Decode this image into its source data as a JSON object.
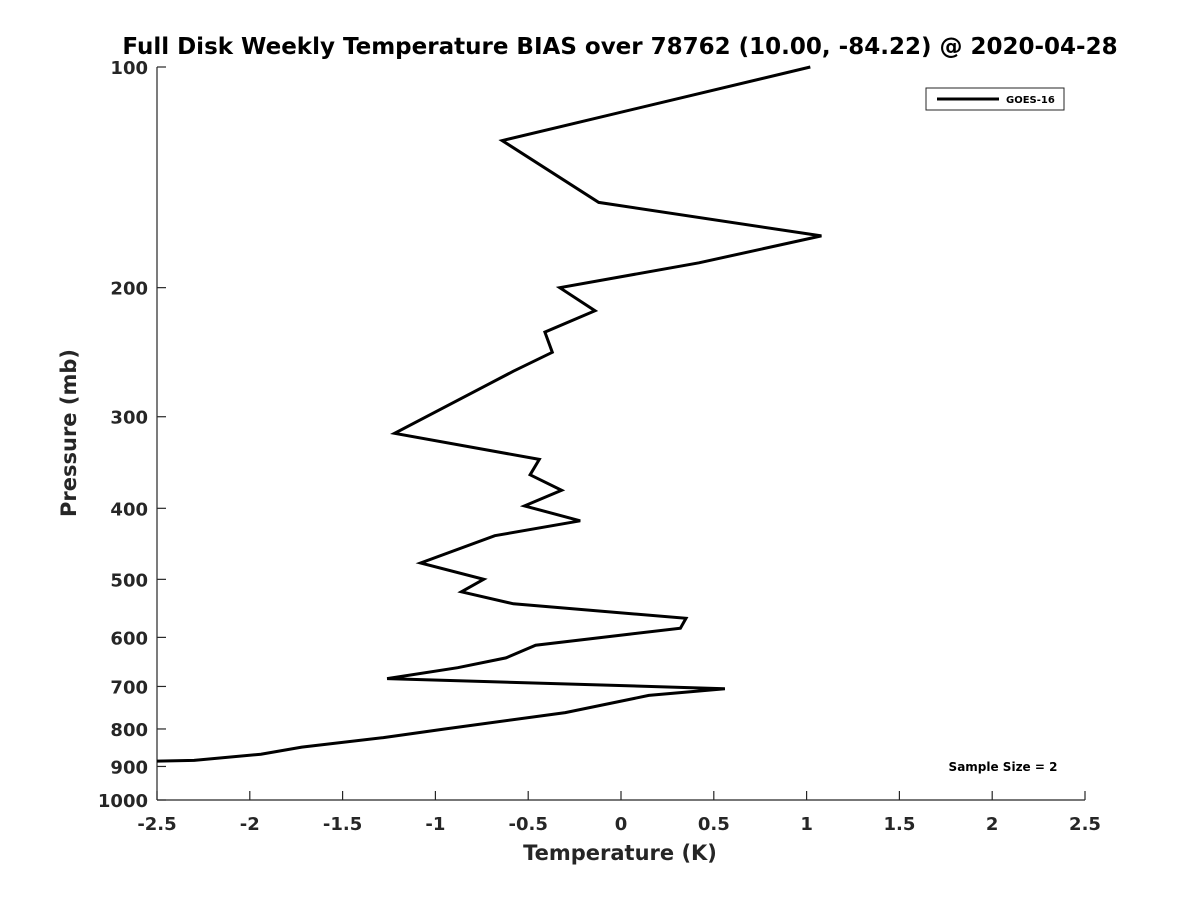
{
  "chart_data": {
    "type": "line",
    "title": "Full Disk Weekly Temperature BIAS over 78762 (10.00, -84.22) @ 2020-04-28",
    "xlabel": "Temperature (K)",
    "ylabel": "Pressure (mb)",
    "xlim": [
      -2.5,
      2.5
    ],
    "ylim": [
      1000,
      100
    ],
    "yscale": "log",
    "y_reversed": true,
    "grid": false,
    "legend_position": "top-right",
    "x_ticks": [
      -2.5,
      -2,
      -1.5,
      -1,
      -0.5,
      0,
      0.5,
      1,
      1.5,
      2,
      2.5
    ],
    "x_tick_labels": [
      "-2.5",
      "-2",
      "-1.5",
      "-1",
      "-0.5",
      "0",
      "0.5",
      "1",
      "1.5",
      "2",
      "2.5"
    ],
    "y_ticks": [
      100,
      200,
      300,
      400,
      500,
      600,
      700,
      800,
      900,
      1000
    ],
    "y_tick_labels": [
      "100",
      "200",
      "300",
      "400",
      "500",
      "600",
      "700",
      "800",
      "900",
      "1000"
    ],
    "series": [
      {
        "name": "GOES-16",
        "color": "#000000",
        "points": [
          {
            "x": 1.02,
            "y": 100
          },
          {
            "x": -0.64,
            "y": 126
          },
          {
            "x": -0.12,
            "y": 153
          },
          {
            "x": 1.08,
            "y": 170
          },
          {
            "x": 0.42,
            "y": 185
          },
          {
            "x": -0.33,
            "y": 200
          },
          {
            "x": -0.14,
            "y": 215
          },
          {
            "x": -0.41,
            "y": 230
          },
          {
            "x": -0.37,
            "y": 245
          },
          {
            "x": -0.58,
            "y": 260
          },
          {
            "x": -1.22,
            "y": 316
          },
          {
            "x": -0.44,
            "y": 343
          },
          {
            "x": -0.49,
            "y": 360
          },
          {
            "x": -0.32,
            "y": 378
          },
          {
            "x": -0.52,
            "y": 397
          },
          {
            "x": -0.22,
            "y": 416
          },
          {
            "x": -0.68,
            "y": 436
          },
          {
            "x": -1.08,
            "y": 475
          },
          {
            "x": -0.74,
            "y": 500
          },
          {
            "x": -0.86,
            "y": 520
          },
          {
            "x": -0.58,
            "y": 540
          },
          {
            "x": 0.35,
            "y": 565
          },
          {
            "x": 0.32,
            "y": 583
          },
          {
            "x": -0.46,
            "y": 615
          },
          {
            "x": -0.62,
            "y": 640
          },
          {
            "x": -0.88,
            "y": 660
          },
          {
            "x": -1.26,
            "y": 683
          },
          {
            "x": 0.56,
            "y": 705
          },
          {
            "x": 0.15,
            "y": 720
          },
          {
            "x": -0.3,
            "y": 760
          },
          {
            "x": -0.95,
            "y": 800
          },
          {
            "x": -1.28,
            "y": 822
          },
          {
            "x": -1.72,
            "y": 847
          },
          {
            "x": -1.94,
            "y": 866
          },
          {
            "x": -2.3,
            "y": 883
          },
          {
            "x": -2.5,
            "y": 885
          }
        ]
      }
    ],
    "annotations": [
      {
        "text": "Sample Size = 2",
        "position": "bottom-right"
      }
    ]
  }
}
